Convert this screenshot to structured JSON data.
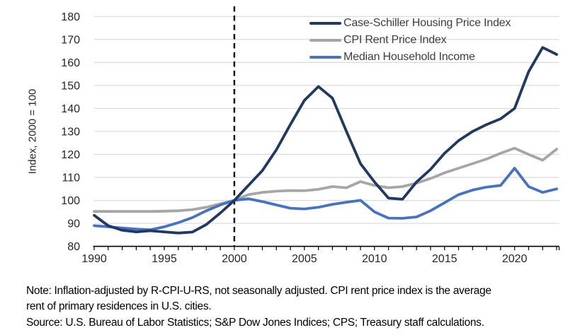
{
  "figure": {
    "y_axis_title": "Index, 2000 = 100",
    "note_lines": [
      "Note: Inflation-adjusted by R-CPI-U-RS, not seasonally adjusted. CPI rent price index is the average",
      "rent of primary residences in U.S. cities.",
      "Source: U.S. Bureau of Labor Statistics; S&P Dow Jones Indices; CPS; Treasury staff calculations."
    ]
  },
  "chart_data": {
    "type": "line",
    "title": "",
    "xlabel": "",
    "ylabel": "Index, 2000 = 100",
    "ylim": [
      80,
      180
    ],
    "y_ticks": [
      80,
      90,
      100,
      110,
      120,
      130,
      140,
      150,
      160,
      170,
      180
    ],
    "x_range": [
      1990,
      2023
    ],
    "x_tick_labels": [
      "1990",
      "1995",
      "2000",
      "2005",
      "2010",
      "2015",
      "2020"
    ],
    "grid": "horizontal",
    "legend_position": "top-right",
    "reference_line": {
      "x": 2000,
      "style": "dashed",
      "color": "#000000"
    },
    "years": [
      1990,
      1991,
      1992,
      1993,
      1994,
      1995,
      1996,
      1997,
      1998,
      1999,
      2000,
      2001,
      2002,
      2003,
      2004,
      2005,
      2006,
      2007,
      2008,
      2009,
      2010,
      2011,
      2012,
      2013,
      2014,
      2015,
      2016,
      2017,
      2018,
      2019,
      2020,
      2021,
      2022,
      2023
    ],
    "series": [
      {
        "name": "Case-Schiller Housing Price Index",
        "color": "#1F3864",
        "values": [
          93.5,
          89,
          87,
          86.3,
          86.8,
          86.3,
          85.8,
          86.2,
          89.5,
          94.5,
          100,
          106.5,
          113,
          122,
          133,
          143.5,
          149.5,
          144.5,
          130,
          116,
          108,
          101,
          100.5,
          108,
          113.5,
          120.5,
          126,
          130,
          133,
          135.5,
          140,
          156,
          166.5,
          163.5
        ]
      },
      {
        "name": "CPI Rent Price Index",
        "color": "#A6A6A6",
        "values": [
          95.2,
          95.2,
          95.2,
          95.2,
          95.2,
          95.3,
          95.5,
          96,
          97,
          98.5,
          100,
          102.5,
          103.5,
          104,
          104.3,
          104.2,
          104.8,
          106,
          105.5,
          108.2,
          106.5,
          105.5,
          106,
          107.5,
          109.5,
          112,
          114,
          116,
          118,
          120.5,
          122.7,
          120,
          117.5,
          122.3
        ]
      },
      {
        "name": "Median Household Income",
        "color": "#4472C4",
        "values": [
          89,
          88.5,
          88,
          87.5,
          87.2,
          88.5,
          90.3,
          92.5,
          95.5,
          98,
          100,
          100.7,
          99.5,
          98,
          96.6,
          96.3,
          97,
          98.3,
          99.2,
          100,
          95,
          92.3,
          92.2,
          92.8,
          95.5,
          99,
          102.5,
          104.5,
          105.8,
          106.5,
          114,
          106,
          103.5,
          105
        ]
      }
    ],
    "colors": {
      "gridline": "#D9D9D9",
      "axis": "#000000",
      "tick_label": "#262626"
    }
  }
}
